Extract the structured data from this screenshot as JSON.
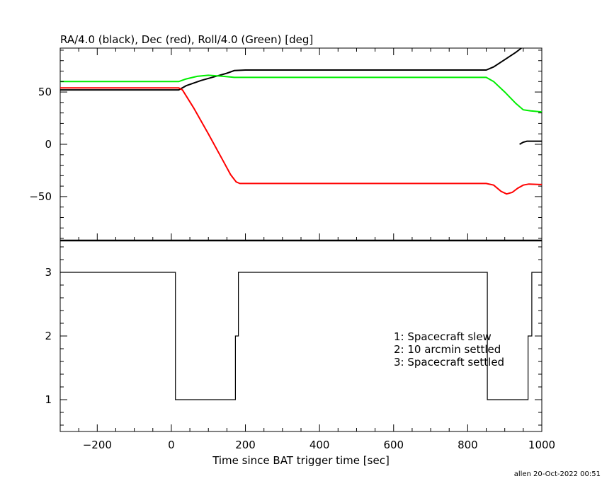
{
  "chart_data": [
    {
      "type": "line",
      "title": "RA/4.0 (black), Dec (red), Roll/4.0 (Green) [deg]",
      "xlim": [
        -300,
        1000
      ],
      "ylim": [
        -92,
        92
      ],
      "yticks": [
        50,
        0,
        -50
      ],
      "ytick_labels": [
        "50",
        "0",
        "−50"
      ],
      "grid": false,
      "series": [
        {
          "color": "#000000",
          "segments": [
            [
              [
                -300,
                52
              ],
              [
                20,
                52
              ],
              [
                40,
                56
              ],
              [
                80,
                61
              ],
              [
                120,
                65
              ],
              [
                150,
                68
              ],
              [
                170,
                70.5
              ],
              [
                200,
                71
              ],
              [
                380,
                71
              ],
              [
                850,
                71
              ],
              [
                870,
                74
              ],
              [
                900,
                81
              ],
              [
                930,
                88
              ],
              [
                945,
                92
              ]
            ],
            [
              [
                940,
                0
              ],
              [
                950,
                2
              ],
              [
                960,
                3
              ],
              [
                980,
                3
              ],
              [
                1000,
                3
              ]
            ]
          ]
        },
        {
          "color": "#ff0000",
          "segments": [
            [
              [
                -300,
                54
              ],
              [
                20,
                54
              ],
              [
                30,
                52
              ],
              [
                60,
                35
              ],
              [
                100,
                10
              ],
              [
                140,
                -16
              ],
              [
                160,
                -29
              ],
              [
                175,
                -36
              ],
              [
                185,
                -37.5
              ],
              [
                380,
                -37.5
              ],
              [
                850,
                -37.5
              ],
              [
                870,
                -39
              ],
              [
                890,
                -45
              ],
              [
                905,
                -47.5
              ],
              [
                920,
                -46
              ],
              [
                935,
                -42
              ],
              [
                950,
                -39
              ],
              [
                965,
                -38
              ],
              [
                1000,
                -38.5
              ]
            ]
          ]
        },
        {
          "color": "#00ee00",
          "segments": [
            [
              [
                -300,
                60
              ],
              [
                20,
                60
              ],
              [
                40,
                62.5
              ],
              [
                70,
                65
              ],
              [
                100,
                66
              ],
              [
                140,
                65
              ],
              [
                170,
                64
              ],
              [
                380,
                64
              ],
              [
                850,
                64
              ],
              [
                870,
                60
              ],
              [
                900,
                50
              ],
              [
                930,
                39
              ],
              [
                950,
                33
              ],
              [
                970,
                32
              ],
              [
                1000,
                31
              ]
            ]
          ]
        }
      ]
    },
    {
      "type": "line",
      "xlabel": "Time since BAT trigger time [sec]",
      "xlim": [
        -300,
        1000
      ],
      "ylim": [
        0.5,
        3.5
      ],
      "xticks": [
        -200,
        0,
        200,
        400,
        600,
        800,
        1000
      ],
      "xtick_labels": [
        "−200",
        "0",
        "200",
        "400",
        "600",
        "800",
        "1000"
      ],
      "yticks": [
        1,
        2,
        3
      ],
      "ytick_labels": [
        "1",
        "2",
        "3"
      ],
      "grid": false,
      "series": [
        {
          "color": "#000000",
          "step": true,
          "x": [
            -300,
            11,
            173,
            181,
            853,
            963,
            973,
            1000
          ],
          "y": [
            3,
            1,
            2,
            3,
            1,
            2,
            3,
            3
          ]
        }
      ],
      "annotations": [
        "1: Spacecraft slew",
        "2: 10 arcmin settled",
        "3: Spacecraft settled"
      ]
    }
  ],
  "footer": "allen 20-Oct-2022 00:51"
}
